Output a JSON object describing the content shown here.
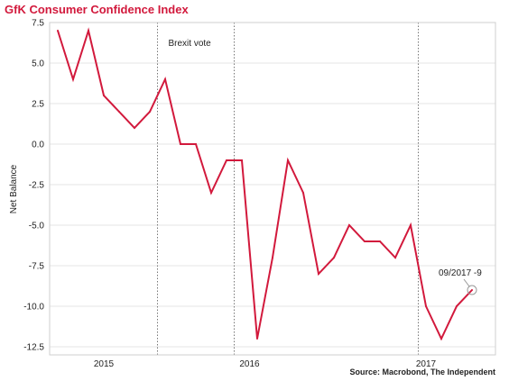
{
  "chart_data": {
    "type": "line",
    "title": "GfK Consumer Confidence Index",
    "ylabel": "Net Balance",
    "xlabel": "",
    "ylim": [
      -13,
      7.5
    ],
    "yticks": [
      "7.5",
      "5.0",
      "2.5",
      "0.0",
      "-2.5",
      "-5.0",
      "-7.5",
      "-10.0",
      "-12.5"
    ],
    "ytick_values": [
      7.5,
      5.0,
      2.5,
      0.0,
      -2.5,
      -5.0,
      -7.5,
      -10.0,
      -12.5
    ],
    "year_labels": [
      "2015",
      "2016",
      "2017"
    ],
    "year_label_index": [
      3,
      12.5,
      24
    ],
    "year_boundaries_index": [
      11.5,
      23.5
    ],
    "grid": true,
    "series": [
      {
        "color": "#d2193c",
        "values": [
          7,
          4,
          7,
          3,
          2,
          1,
          2,
          4,
          0,
          0,
          -3,
          -1,
          -1,
          -12,
          -7,
          -1,
          -3,
          -8,
          -7,
          -5,
          -6,
          -6,
          -7,
          -5,
          -10,
          -12,
          -10,
          -9
        ]
      }
    ],
    "annotations": [
      {
        "text": "Brexit vote",
        "index": 6.5
      },
      {
        "text": "09/2017 -9",
        "index": 27,
        "value": -9
      }
    ],
    "source": "Source: Macrobond, The Independent"
  }
}
